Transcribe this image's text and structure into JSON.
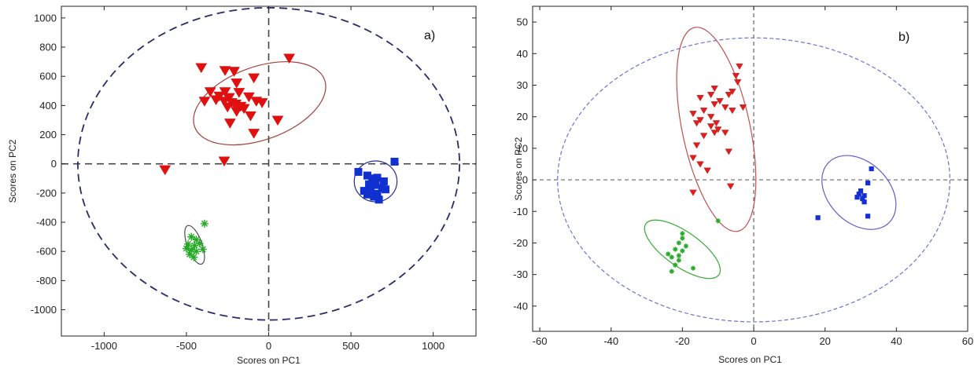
{
  "chart_data": [
    {
      "type": "scatter",
      "panel_label": "a)",
      "xlabel": "Scores on PC1",
      "ylabel": "Scores on PC2",
      "xlim": [
        -1260,
        1260
      ],
      "ylim": [
        -1180,
        1080
      ],
      "xticks": [
        -1000,
        -500,
        0,
        500,
        1000
      ],
      "yticks": [
        -1000,
        -800,
        -600,
        -400,
        -200,
        0,
        200,
        400,
        600,
        800,
        1000
      ],
      "grid": false,
      "confidence_ellipse": {
        "cx": 0,
        "cy": 0,
        "rx": 1160,
        "ry": 1070,
        "color": "#2b2b6b"
      },
      "series": [
        {
          "marker": "triangle-down",
          "color": "#e01010",
          "ellipse_color": "#a0403f",
          "ellipse": {
            "cx": -55,
            "cy": 415,
            "rx": 420,
            "ry": 250,
            "angle": 20
          },
          "points": [
            [
              -410,
              660
            ],
            [
              -265,
              640
            ],
            [
              -210,
              635
            ],
            [
              -90,
              590
            ],
            [
              125,
              725
            ],
            [
              -355,
              495
            ],
            [
              -300,
              465
            ],
            [
              -265,
              495
            ],
            [
              -240,
              455
            ],
            [
              -195,
              555
            ],
            [
              -180,
              490
            ],
            [
              -320,
              440
            ],
            [
              -270,
              430
            ],
            [
              -225,
              420
            ],
            [
              -200,
              410
            ],
            [
              -170,
              395
            ],
            [
              -120,
              460
            ],
            [
              -75,
              430
            ],
            [
              -40,
              420
            ],
            [
              -390,
              430
            ],
            [
              -250,
              390
            ],
            [
              -190,
              380
            ],
            [
              -150,
              380
            ],
            [
              -110,
              330
            ],
            [
              -195,
              360
            ],
            [
              -235,
              280
            ],
            [
              -90,
              210
            ],
            [
              55,
              300
            ],
            [
              -270,
              20
            ],
            [
              -630,
              -40
            ]
          ]
        },
        {
          "marker": "square",
          "color": "#1030d0",
          "ellipse_color": "#2a2a90",
          "ellipse": {
            "cx": 650,
            "cy": -120,
            "rx": 130,
            "ry": 140,
            "angle": 0
          },
          "points": [
            [
              765,
              15
            ],
            [
              545,
              -55
            ],
            [
              600,
              -80
            ],
            [
              630,
              -100
            ],
            [
              660,
              -95
            ],
            [
              700,
              -120
            ],
            [
              610,
              -140
            ],
            [
              650,
              -145
            ],
            [
              690,
              -165
            ],
            [
              580,
              -185
            ],
            [
              620,
              -185
            ],
            [
              660,
              -205
            ],
            [
              600,
              -210
            ],
            [
              640,
              -225
            ],
            [
              670,
              -245
            ],
            [
              710,
              -175
            ],
            [
              640,
              -130
            ]
          ]
        },
        {
          "marker": "star",
          "color": "#22aa22",
          "ellipse_color": "#4d4d4d",
          "ellipse": {
            "cx": -450,
            "cy": -555,
            "rx": 45,
            "ry": 140,
            "angle": 20
          },
          "points": [
            [
              -390,
              -410
            ],
            [
              -470,
              -500
            ],
            [
              -440,
              -520
            ],
            [
              -490,
              -550
            ],
            [
              -450,
              -560
            ],
            [
              -420,
              -545
            ],
            [
              -470,
              -590
            ],
            [
              -440,
              -600
            ],
            [
              -400,
              -585
            ],
            [
              -480,
              -620
            ],
            [
              -455,
              -640
            ],
            [
              -500,
              -580
            ]
          ]
        }
      ]
    },
    {
      "type": "scatter",
      "panel_label": "b)",
      "xlabel": "Scores on PC1",
      "ylabel": "Scores on PC2",
      "xlim": [
        -62,
        60
      ],
      "ylim": [
        -48,
        55
      ],
      "xticks": [
        -60,
        -40,
        -20,
        0,
        20,
        40,
        60
      ],
      "yticks": [
        -40,
        -30,
        -20,
        -10,
        0,
        10,
        20,
        30,
        40,
        50
      ],
      "grid": false,
      "confidence_ellipse": {
        "cx": 0,
        "cy": 0,
        "rx": 55,
        "ry": 45,
        "color": "#7070d8"
      },
      "series": [
        {
          "marker": "triangle-down",
          "color": "#d82020",
          "ellipse_color": "#c05050",
          "ellipse": {
            "cx": -10.5,
            "cy": 16,
            "rx": 9.5,
            "ry": 33,
            "angle": 12
          },
          "points": [
            [
              -4,
              36
            ],
            [
              -5,
              33
            ],
            [
              -4.5,
              31
            ],
            [
              -6,
              28
            ],
            [
              -11,
              29
            ],
            [
              -12,
              27
            ],
            [
              -7,
              27
            ],
            [
              -15,
              26
            ],
            [
              -9.5,
              25
            ],
            [
              -11,
              24
            ],
            [
              -8,
              23
            ],
            [
              -3,
              23
            ],
            [
              -14,
              22
            ],
            [
              -6,
              22
            ],
            [
              -17,
              21
            ],
            [
              -12,
              20
            ],
            [
              -15,
              19
            ],
            [
              -10.5,
              18
            ],
            [
              -12,
              17
            ],
            [
              -16,
              18
            ],
            [
              -10,
              16
            ],
            [
              -11,
              15
            ],
            [
              -8,
              15
            ],
            [
              -14,
              14
            ],
            [
              -16,
              11
            ],
            [
              -7,
              9
            ],
            [
              -17,
              7
            ],
            [
              -15,
              5
            ],
            [
              -13,
              3
            ],
            [
              -6.5,
              -2
            ],
            [
              -17,
              -4
            ]
          ]
        },
        {
          "marker": "square",
          "color": "#1530d0",
          "ellipse_color": "#6060c8",
          "ellipse": {
            "cx": 29.5,
            "cy": -4,
            "rx": 8.5,
            "ry": 13.5,
            "angle": 45
          },
          "points": [
            [
              33,
              3.5
            ],
            [
              32,
              -1
            ],
            [
              30,
              -3.5
            ],
            [
              29.5,
              -4.5
            ],
            [
              31,
              -5
            ],
            [
              30.5,
              -6
            ],
            [
              29,
              -5.5
            ],
            [
              31,
              -7
            ],
            [
              32,
              -11.5
            ],
            [
              18,
              -12
            ]
          ]
        },
        {
          "marker": "star",
          "color": "#2aaa2a",
          "ellipse_color": "#33aa33",
          "ellipse": {
            "cx": -20,
            "cy": -22,
            "rx": 12.5,
            "ry": 5.5,
            "angle": -35
          },
          "points": [
            [
              -10,
              -13
            ],
            [
              -20,
              -17
            ],
            [
              -20,
              -18.5
            ],
            [
              -21,
              -20
            ],
            [
              -19,
              -21
            ],
            [
              -22,
              -22
            ],
            [
              -20,
              -22.5
            ],
            [
              -24,
              -23.5
            ],
            [
              -21,
              -24
            ],
            [
              -23,
              -24.5
            ],
            [
              -21,
              -25.5
            ],
            [
              -17,
              -28
            ],
            [
              -22,
              -27
            ],
            [
              -23,
              -29
            ]
          ]
        }
      ]
    }
  ]
}
